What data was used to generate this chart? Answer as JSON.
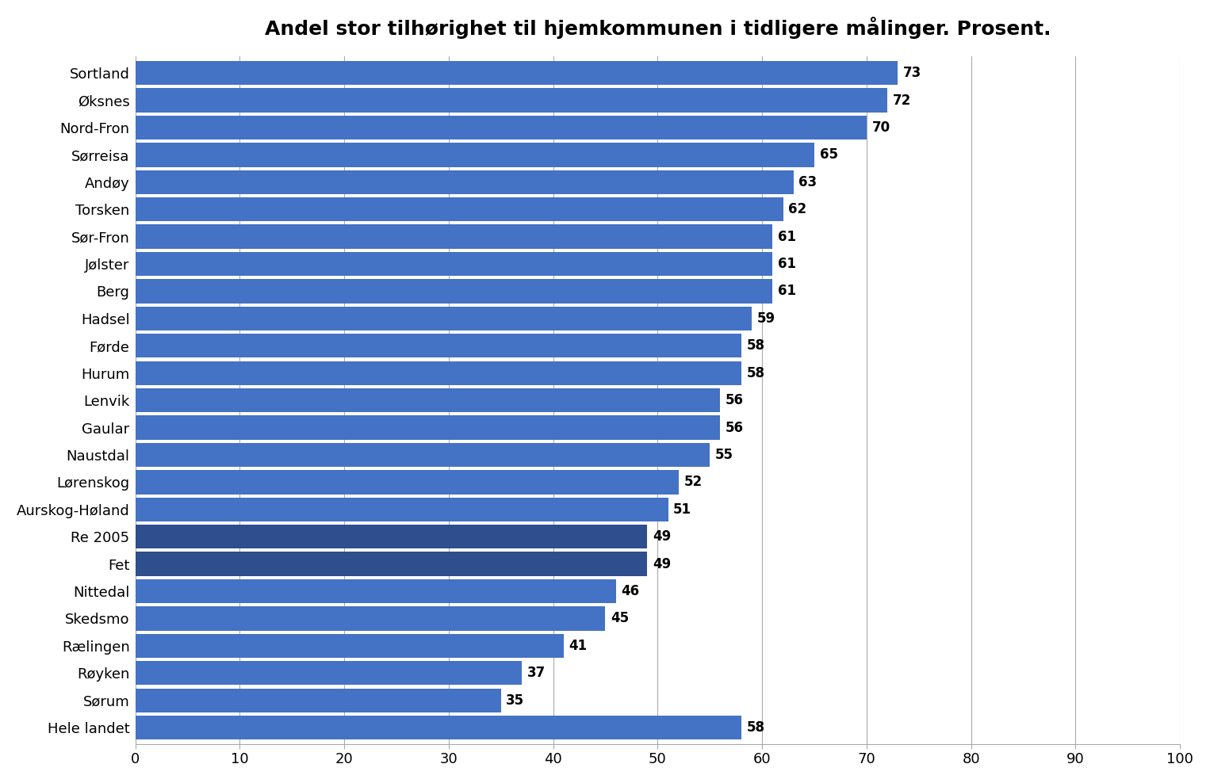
{
  "title": "Andel stor tilhørighet til hjemkommunen i tidligere målinger. Prosent.",
  "categories": [
    "Hele landet",
    "Sørum",
    "Røyken",
    "Rælingen",
    "Skedsmo",
    "Nittedal",
    "Fet",
    "Re 2005",
    "Aurskog-Høland",
    "Lørenskog",
    "Naustdal",
    "Gaular",
    "Lenvik",
    "Hurum",
    "Førde",
    "Hadsel",
    "Berg",
    "Jølster",
    "Sør-Fron",
    "Torsken",
    "Andøy",
    "Sørreisa",
    "Nord-Fron",
    "Øksnes",
    "Sortland"
  ],
  "values": [
    58,
    35,
    37,
    41,
    45,
    46,
    49,
    49,
    51,
    52,
    55,
    56,
    56,
    58,
    58,
    59,
    61,
    61,
    61,
    62,
    63,
    65,
    70,
    72,
    73
  ],
  "bar_colors": [
    "#4472C4",
    "#4472C4",
    "#4472C4",
    "#4472C4",
    "#4472C4",
    "#4472C4",
    "#2E4E8E",
    "#2E4E8E",
    "#4472C4",
    "#4472C4",
    "#4472C4",
    "#4472C4",
    "#4472C4",
    "#4472C4",
    "#4472C4",
    "#4472C4",
    "#4472C4",
    "#4472C4",
    "#4472C4",
    "#4472C4",
    "#4472C4",
    "#4472C4",
    "#4472C4",
    "#4472C4",
    "#4472C4"
  ],
  "xlim": [
    0,
    100
  ],
  "xticks": [
    0,
    10,
    20,
    30,
    40,
    50,
    60,
    70,
    80,
    90,
    100
  ],
  "grid_color": "#AAAAAA",
  "background_color": "#FFFFFF",
  "title_fontsize": 18,
  "label_fontsize": 13,
  "value_fontsize": 12,
  "bar_height": 0.88
}
